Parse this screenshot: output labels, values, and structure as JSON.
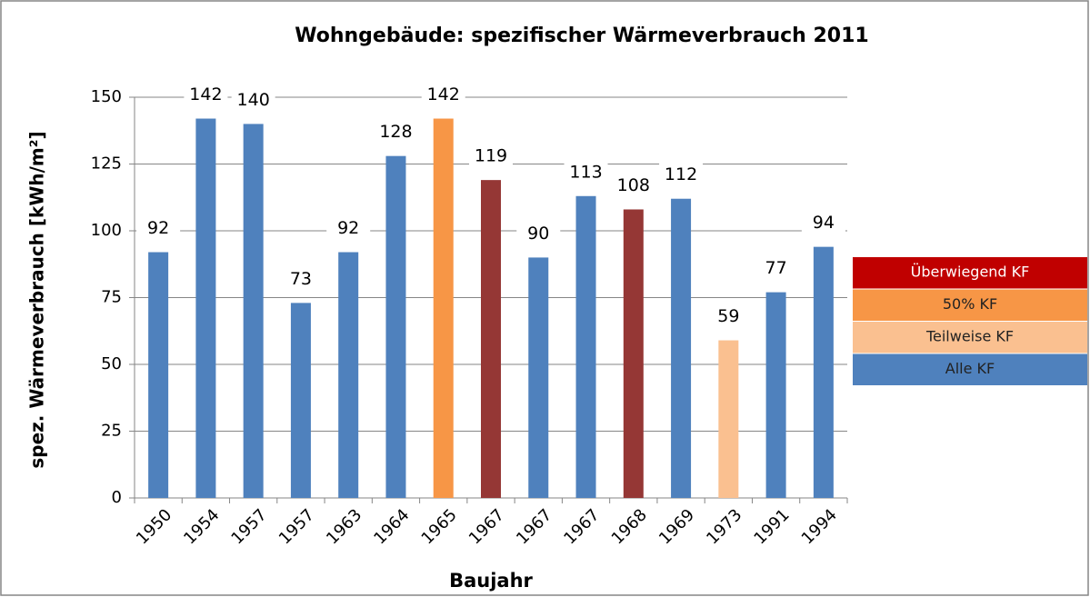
{
  "chart_data": {
    "type": "bar",
    "title": "Wohngebäude: spezifischer Wärmeverbrauch 2011",
    "x_label": "Baujahr",
    "y_label": "spez. Wärmeverbrauch [kWh/m²]",
    "categories": [
      "1950",
      "1954",
      "1957",
      "1957",
      "1963",
      "1964",
      "1965",
      "1967",
      "1967",
      "1967",
      "1968",
      "1969",
      "1973",
      "1991",
      "1994"
    ],
    "values": [
      92,
      142,
      140,
      73,
      92,
      128,
      142,
      119,
      90,
      113,
      108,
      112,
      59,
      77,
      94
    ],
    "colors": [
      "#4f81bd",
      "#4f81bd",
      "#4f81bd",
      "#4f81bd",
      "#4f81bd",
      "#4f81bd",
      "#f79646",
      "#953735",
      "#4f81bd",
      "#4f81bd",
      "#953735",
      "#4f81bd",
      "#fac090",
      "#4f81bd",
      "#4f81bd"
    ],
    "ylim": [
      0,
      150
    ],
    "yticks": [
      0,
      25,
      50,
      75,
      100,
      125,
      150
    ],
    "grid": true,
    "legend": [
      {
        "label": "Überwiegend KF",
        "color": "#c00000",
        "text_color": "#ffffff"
      },
      {
        "label": "50% KF",
        "color": "#f79646",
        "text_color": "#222222"
      },
      {
        "label": "Teilweise KF",
        "color": "#fac090",
        "text_color": "#222222"
      },
      {
        "label": "Alle KF",
        "color": "#4f81bd",
        "text_color": "#222222"
      }
    ]
  }
}
